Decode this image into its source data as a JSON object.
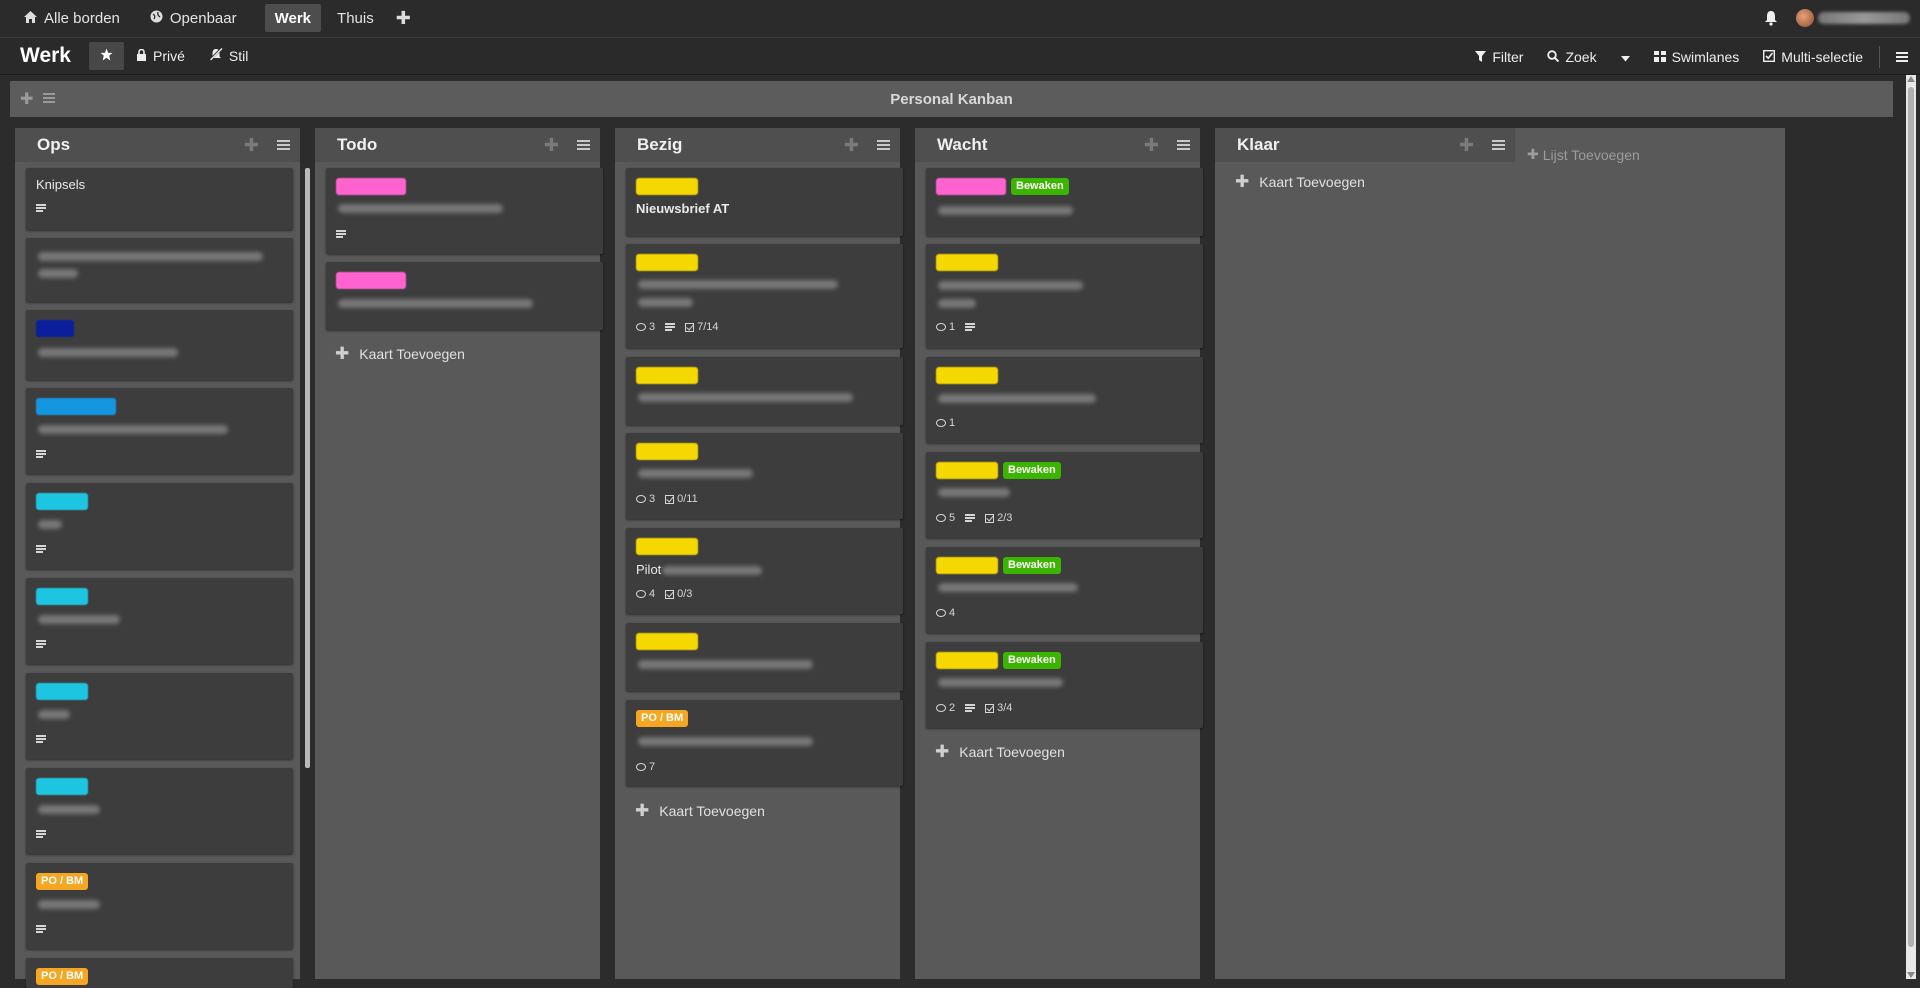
{
  "topnav": {
    "all_boards": "Alle borden",
    "public": "Openbaar",
    "active_tab": "Werk",
    "home_tab": "Thuis",
    "add_icon": "plus-icon"
  },
  "board": {
    "title": "Werk",
    "private": "Privé",
    "quiet": "Stil",
    "filter": "Filter",
    "search": "Zoek",
    "swimlanes": "Swimlanes",
    "multiselect": "Multi-selectie"
  },
  "swimlane": {
    "title": "Personal Kanban"
  },
  "lists": [
    {
      "title": "Ops"
    },
    {
      "title": "Todo"
    },
    {
      "title": "Bezig"
    },
    {
      "title": "Wacht"
    },
    {
      "title": "Klaar"
    }
  ],
  "cards": {
    "ops_knipsels": "Knipsels",
    "ops_po_bm": "PO / BM",
    "bezig_nieuwsbrief": "Nieuwsbrief AT",
    "bezig_pilot": "Pilot",
    "bezig_po_bm": "PO / BM",
    "watch": "Bewaken"
  },
  "badges": {
    "b2_com": "3",
    "b2_chk": "7/14",
    "b4_com": "3",
    "b4_chk": "0/11",
    "b5_com": "4",
    "b5_chk": "0/3",
    "b7_com": "7",
    "w2_com": "1",
    "w3_com": "1",
    "w4_com": "5",
    "w4_chk": "2/3",
    "w5_com": "4",
    "w6_com": "2",
    "w6_chk": "3/4"
  },
  "add_card": "Kaart Toevoegen",
  "add_list": "Lijst Toevoegen",
  "colors": {
    "pink": "#ff63cf",
    "yellow": "#f5d800",
    "navy": "#0b1f9c",
    "blue": "#1497e0",
    "cyan": "#1ec5e0",
    "orange": "#f5a623",
    "green": "#3cb500"
  }
}
